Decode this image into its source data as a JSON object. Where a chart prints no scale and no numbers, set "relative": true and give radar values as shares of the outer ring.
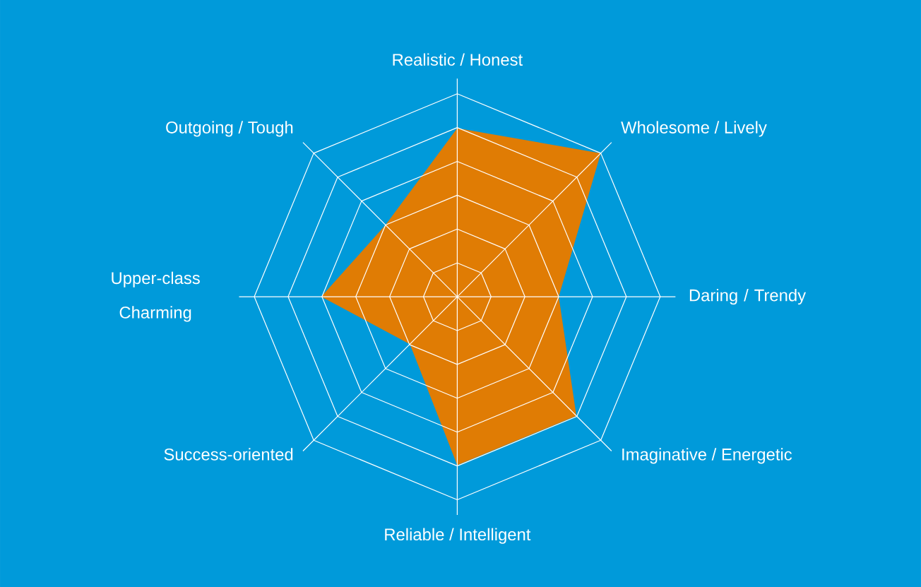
{
  "chart_data": {
    "type": "radar",
    "relative": true,
    "grid": true,
    "categories": [
      "Realistic / Honest",
      "Wholesome / Lively",
      "Daring / Trendy",
      "Imaginative / Energetic",
      "Reliable / Intelligent",
      "Success-oriented",
      "Upper-class Charming",
      "Outgoing / Tough"
    ],
    "series": [
      {
        "color": "#e07c04",
        "values": [
          0.83,
          1,
          0.5,
          0.83,
          0.83,
          0.33,
          0.67,
          0.5
        ]
      }
    ]
  }
}
